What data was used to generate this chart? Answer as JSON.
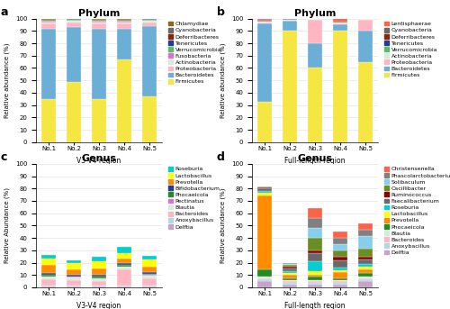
{
  "phylum_v34_labels": [
    "No.1",
    "No.2",
    "No.3",
    "No.4",
    "No.5"
  ],
  "phylum_v34_xlabel": "V3-V4 region",
  "phylum_v34_title": "Phylum",
  "phylum_v34_categories": [
    "Firmicutes",
    "Bacteroidetes",
    "Proteobacteria",
    "Actinobacteria",
    "Fusobacteria",
    "Verrucomicrobia",
    "Tenericutes",
    "Deferribacteres",
    "Cyanobacteria",
    "Chlamydiae"
  ],
  "phylum_v34_colors": [
    "#F5E642",
    "#6BAED6",
    "#FFB6C1",
    "#D4EDDA",
    "#DA70D6",
    "#5DBB63",
    "#1F3D99",
    "#8B2500",
    "#696969",
    "#8B6914"
  ],
  "phylum_v34_data": [
    [
      35,
      49,
      35,
      67,
      37
    ],
    [
      57,
      44,
      57,
      25,
      57
    ],
    [
      4,
      4,
      4,
      4,
      3
    ],
    [
      1,
      1,
      1,
      1,
      1
    ],
    [
      0.5,
      0.5,
      0.5,
      0.5,
      0.5
    ],
    [
      0.5,
      0.5,
      0.5,
      0.5,
      0.5
    ],
    [
      0.5,
      0.5,
      0.5,
      0.5,
      0.5
    ],
    [
      0.3,
      0.3,
      0.3,
      0.3,
      0.3
    ],
    [
      0.5,
      0.5,
      0.5,
      0.5,
      0.5
    ],
    [
      0.7,
      0.7,
      0.7,
      0.7,
      0.7
    ]
  ],
  "phylum_fl_labels": [
    "No.1",
    "No.2",
    "No.3",
    "No.4",
    "No.5"
  ],
  "phylum_fl_xlabel": "Full-length region",
  "phylum_fl_title": "Phylum",
  "phylum_fl_categories": [
    "Firmicutes",
    "Bacteroidetes",
    "Proteobacteria",
    "Actinobacteria",
    "Verrucomicrobia",
    "Tenericutes",
    "Deferribacteres",
    "Cyanobacteria",
    "Lentisphaerae"
  ],
  "phylum_fl_colors": [
    "#F5E642",
    "#6BAED6",
    "#FFB6C1",
    "#D4EDDA",
    "#5DBB63",
    "#1F3D99",
    "#8B2500",
    "#696969",
    "#FF6347"
  ],
  "phylum_fl_data": [
    [
      33,
      90,
      60,
      90,
      65
    ],
    [
      63,
      8,
      20,
      5,
      25
    ],
    [
      1,
      0.5,
      19,
      1,
      9
    ],
    [
      0.5,
      0.5,
      0.5,
      0.5,
      0.5
    ],
    [
      0.3,
      0.3,
      0.3,
      0.3,
      0.3
    ],
    [
      0.3,
      0.3,
      0.3,
      0.3,
      0.3
    ],
    [
      0.2,
      0.2,
      0.2,
      0.2,
      0.2
    ],
    [
      0.2,
      0.2,
      0.2,
      0.2,
      0.2
    ],
    [
      1.5,
      0.2,
      0.2,
      2.7,
      0.2
    ]
  ],
  "genus_v34_labels": [
    "No.1",
    "No.2",
    "No.3",
    "No.4",
    "No.5"
  ],
  "genus_v34_xlabel": "V3-V4 region",
  "genus_v34_title": "Genus",
  "genus_v34_categories": [
    "Delftia",
    "Anoxybacillus",
    "Bacteroides",
    "Blautia",
    "Pectinatus",
    "Phocaeicola",
    "Bifidobacterium",
    "Prevotella",
    "Lactobacillus",
    "Roseburia"
  ],
  "genus_v34_colors": [
    "#C8A2C8",
    "#ADD8E6",
    "#FFB6C1",
    "#D4EDDA",
    "#DA70D6",
    "#228B22",
    "#1F3D99",
    "#FF8C00",
    "#FFFF00",
    "#00CED1"
  ],
  "genus_v34_data": [
    [
      1.0,
      1.0,
      1.0,
      1.0,
      1.0
    ],
    [
      0.5,
      0.5,
      0.5,
      0.5,
      0.5
    ],
    [
      5.0,
      4.5,
      3.5,
      13.0,
      6.0
    ],
    [
      2.0,
      2.0,
      2.0,
      2.0,
      2.0
    ],
    [
      0.5,
      0.5,
      0.5,
      0.5,
      0.5
    ],
    [
      1.0,
      0.5,
      1.0,
      1.5,
      1.0
    ],
    [
      1.5,
      1.5,
      1.5,
      1.5,
      1.5
    ],
    [
      7.0,
      4.0,
      5.0,
      3.0,
      4.0
    ],
    [
      5.0,
      5.0,
      6.0,
      5.0,
      6.0
    ],
    [
      2.5,
      2.5,
      3.5,
      5.0,
      3.0
    ]
  ],
  "genus_fl_labels": [
    "No.1",
    "No.2",
    "No.3",
    "No.4",
    "No.5"
  ],
  "genus_fl_xlabel": "Full-length region",
  "genus_fl_title": "Genus",
  "genus_fl_categories": [
    "Delftia",
    "Anoxybacillus",
    "Bacteroides",
    "Blautia",
    "Phocaeicola",
    "Prevotella",
    "Lactobacillus",
    "Roseburia",
    "Faecalibacterium",
    "Ruminococcus",
    "Oscillibacter",
    "Solibaculum",
    "Phascolarctobacterium",
    "Christensenella"
  ],
  "genus_fl_colors": [
    "#C8A2C8",
    "#ADD8E6",
    "#FFB6C1",
    "#D4EDDA",
    "#228B22",
    "#FF8C00",
    "#FFFF00",
    "#00CED1",
    "#696969",
    "#8B0000",
    "#6B8E23",
    "#87CEEB",
    "#808080",
    "#FF6347"
  ],
  "genus_fl_data": [
    [
      5.0,
      2.5,
      2.5,
      2.5,
      5.0
    ],
    [
      1.5,
      1.5,
      1.5,
      1.5,
      1.5
    ],
    [
      1.0,
      1.0,
      1.0,
      1.0,
      1.0
    ],
    [
      1.0,
      0.5,
      0.5,
      0.5,
      1.0
    ],
    [
      6.0,
      2.0,
      3.0,
      2.0,
      3.0
    ],
    [
      60.0,
      3.0,
      2.0,
      5.0,
      3.0
    ],
    [
      2.0,
      1.5,
      2.5,
      1.5,
      2.0
    ],
    [
      1.5,
      1.0,
      8.0,
      2.0,
      2.5
    ],
    [
      2.0,
      2.5,
      7.0,
      6.0,
      3.5
    ],
    [
      1.0,
      1.0,
      2.0,
      3.0,
      2.0
    ],
    [
      0.5,
      2.0,
      10.0,
      5.0,
      7.0
    ],
    [
      0.0,
      0.5,
      8.0,
      5.0,
      10.0
    ],
    [
      0.0,
      0.5,
      8.0,
      5.0,
      5.0
    ],
    [
      0.0,
      0.5,
      8.0,
      5.0,
      5.0
    ]
  ],
  "ylabel_phylum": "Relative abundance (%)",
  "ylabel_genus_v34": "Relative Abundance (%)",
  "ylabel_genus_fl": "Relative abundance (%)",
  "ylim_phylum": [
    0,
    100
  ],
  "ylim_genus": [
    0,
    100
  ],
  "yticks_phylum": [
    0,
    10,
    20,
    30,
    40,
    50,
    60,
    70,
    80,
    90,
    100
  ],
  "yticks_genus": [
    0,
    10,
    20,
    30,
    40,
    50,
    60,
    70,
    80,
    90,
    100
  ]
}
